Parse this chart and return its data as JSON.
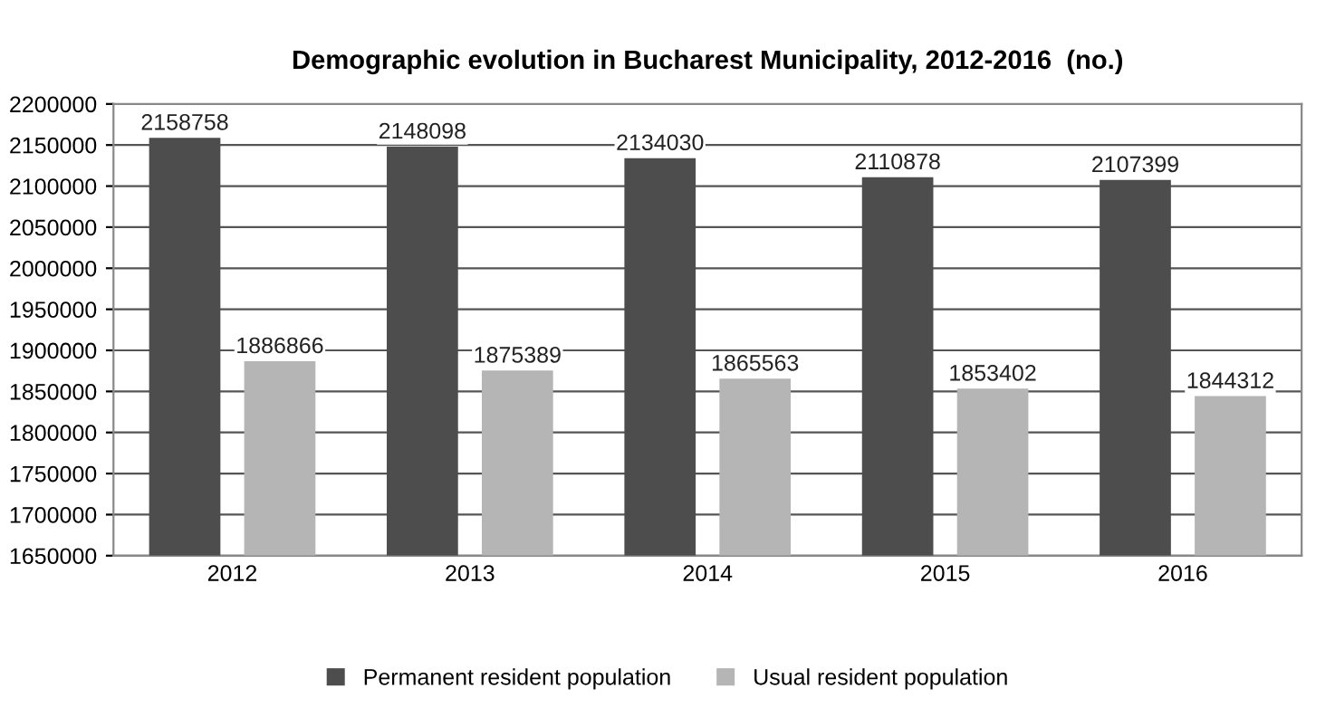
{
  "chart_data": {
    "type": "bar",
    "title": "Demographic evolution in Bucharest Municipality, 2012-2016  (no.)",
    "categories": [
      "2012",
      "2013",
      "2014",
      "2015",
      "2016"
    ],
    "series": [
      {
        "name": "Permanent resident population",
        "color": "#4d4d4d",
        "values": [
          2158758,
          2148098,
          2134030,
          2110878,
          2107399
        ]
      },
      {
        "name": "Usual resident population",
        "color": "#b5b5b5",
        "values": [
          1886866,
          1875389,
          1865563,
          1853402,
          1844312
        ]
      }
    ],
    "ylim": [
      1650000,
      2200000
    ],
    "yticks": [
      1650000,
      1700000,
      1750000,
      1800000,
      1850000,
      1900000,
      1950000,
      2000000,
      2050000,
      2100000,
      2150000,
      2200000
    ],
    "grid": "y",
    "legend": "bottom",
    "data_labels": true
  }
}
